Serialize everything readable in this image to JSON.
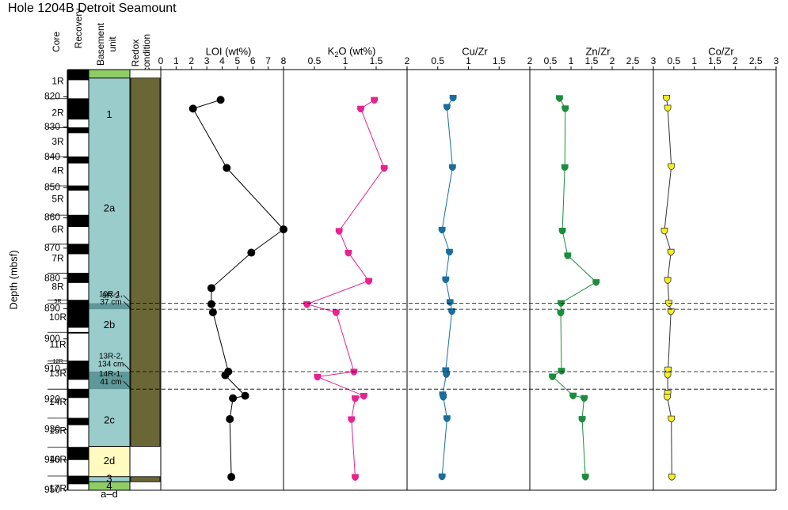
{
  "chart_data": {
    "type": "scatter",
    "title": "Hole 1204B Detroit Seamount",
    "ylabel": "Depth (mbsf)",
    "ylim": [
      950,
      811
    ],
    "yticks": [
      820,
      830,
      840,
      850,
      860,
      870,
      880,
      890,
      900,
      910,
      920,
      930,
      940,
      950
    ],
    "column_headers": {
      "core": "Core",
      "recovery": "Recovery",
      "basement": "Basement unit",
      "redox": "Redox condition"
    },
    "cores": [
      {
        "label": "1R",
        "depth": 815
      },
      {
        "label": "2R",
        "depth": 825.5
      },
      {
        "label": "3R",
        "depth": 835
      },
      {
        "label": "4R",
        "depth": 844.5
      },
      {
        "label": "5R",
        "depth": 854
      },
      {
        "label": "6R",
        "depth": 864
      },
      {
        "label": "7R",
        "depth": 873.5
      },
      {
        "label": "8R",
        "depth": 883
      },
      {
        "label": "9R",
        "depth": 887.6
      },
      {
        "label": "10R",
        "depth": 893
      },
      {
        "label": "11R",
        "depth": 902
      },
      {
        "label": "12R",
        "depth": 907.5
      },
      {
        "label": "13R",
        "depth": 911.5
      },
      {
        "label": "14R",
        "depth": 921
      },
      {
        "label": "15R",
        "depth": 930.5
      },
      {
        "label": "16R",
        "depth": 940
      },
      {
        "label": "17R",
        "depth": 949.5
      }
    ],
    "core_boundaries": [
      820.6,
      830.2,
      839.8,
      849.4,
      859.1,
      868.7,
      878.3,
      887.2,
      888.3,
      897.8,
      907.3,
      908.1,
      916.6,
      926.2,
      935.8,
      945.3
    ],
    "recovery_black": [
      [
        811,
        814.5
      ],
      [
        820.6,
        827.5
      ],
      [
        830.2,
        832
      ],
      [
        839.8,
        842
      ],
      [
        849.4,
        851
      ],
      [
        859.1,
        863
      ],
      [
        868.7,
        872
      ],
      [
        878.3,
        881.5
      ],
      [
        887.2,
        888.3
      ],
      [
        888.3,
        896.3
      ],
      [
        897.8,
        898.2
      ],
      [
        907.3,
        908.1
      ],
      [
        908.1,
        913.5
      ],
      [
        916.6,
        919.5
      ],
      [
        926.2,
        928.5
      ],
      [
        935.8,
        940
      ],
      [
        945.3,
        948
      ]
    ],
    "basement_units": [
      {
        "label": "",
        "from": 811,
        "to": 813.8,
        "color": "#8fcc66"
      },
      {
        "label": "1",
        "from": 813.8,
        "to": 935.5,
        "color": "#9acccc"
      },
      {
        "label": "2d",
        "from": 935.5,
        "to": 945.5,
        "color": "#fffac0"
      },
      {
        "label": "3",
        "from": 945.5,
        "to": 947.2,
        "color": "#9acccc"
      },
      {
        "label": "4",
        "from": 947.2,
        "to": 950,
        "color": "#8fcc66"
      }
    ],
    "basement_labels": [
      {
        "text": "1",
        "depth": 826
      },
      {
        "text": "2a",
        "depth": 857
      },
      {
        "text": "2b",
        "depth": 895.5
      },
      {
        "text": "2c",
        "depth": 927
      },
      {
        "text": "2d",
        "depth": 940.5
      },
      {
        "text": "3",
        "depth": 946.3
      },
      {
        "text": "4",
        "depth": 948.9
      },
      {
        "text": "a–d",
        "depth": 951.5
      }
    ],
    "basement_dark": [
      [
        888.2,
        890.2
      ],
      [
        910.8,
        916.6
      ]
    ],
    "redox_bands": [
      {
        "from": 813.8,
        "to": 935.5,
        "color": "#6b6636"
      },
      {
        "from": 945.5,
        "to": 947.2,
        "color": "#6b6636"
      }
    ],
    "annotations": [
      {
        "lines": [
          "9R-2"
        ],
        "depth": 888.2
      },
      {
        "lines": [
          "10R-1,",
          "37 cm"
        ],
        "depth": 890.2
      },
      {
        "lines": [
          "13R-2,",
          "134 cm"
        ],
        "depth": 910.8
      },
      {
        "lines": [
          "14R-1,",
          "41 cm"
        ],
        "depth": 916.6
      }
    ],
    "panels": [
      {
        "title": "LOI (wt%)",
        "xlim": [
          0,
          8
        ],
        "xticks": [
          "0",
          "1",
          "2",
          "3",
          "4",
          "5",
          "6",
          "7",
          "8"
        ],
        "color": "#000000",
        "marker": "circle",
        "points": [
          [
            3.9,
            821
          ],
          [
            2.1,
            823.9
          ],
          [
            4.3,
            843.5
          ],
          [
            8.0,
            863.8
          ],
          [
            5.9,
            871.5
          ],
          [
            3.3,
            883.2
          ],
          [
            3.3,
            888.5
          ],
          [
            3.4,
            891.2
          ],
          [
            4.4,
            910.8
          ],
          [
            4.2,
            912
          ],
          [
            5.5,
            918.8
          ],
          [
            4.7,
            919.6
          ],
          [
            4.5,
            926.5
          ],
          [
            4.6,
            945.6
          ]
        ]
      },
      {
        "title": "K2O (wt%)",
        "title_main": "K",
        "title_sub": "2",
        "title_rest": "O (wt%)",
        "xlim": [
          0,
          2
        ],
        "xticks": [
          "0",
          "0.5",
          "1",
          "1.5",
          "2"
        ],
        "color": "#e6238f",
        "marker": "shield",
        "points": [
          [
            1.47,
            821
          ],
          [
            1.25,
            823.9
          ],
          [
            1.63,
            843.5
          ],
          [
            0.9,
            864.3
          ],
          [
            1.05,
            871.5
          ],
          [
            1.38,
            880.8
          ],
          [
            0.38,
            888.5
          ],
          [
            0.85,
            891.2
          ],
          [
            1.14,
            910.8
          ],
          [
            0.55,
            912.5
          ],
          [
            1.3,
            918.8
          ],
          [
            1.16,
            919.6
          ],
          [
            1.1,
            926.5
          ],
          [
            1.16,
            945.6
          ]
        ]
      },
      {
        "title": "Cu/Zr",
        "xlim": [
          0,
          2
        ],
        "xticks": [
          "0",
          "0.5",
          "1",
          "1.5",
          "2"
        ],
        "color": "#1a6d9c",
        "marker": "shield",
        "points": [
          [
            0.75,
            820.3
          ],
          [
            0.65,
            823.3
          ],
          [
            0.74,
            843.2
          ],
          [
            0.57,
            863.9
          ],
          [
            0.69,
            871.2
          ],
          [
            0.63,
            880.3
          ],
          [
            0.7,
            887.8
          ],
          [
            0.73,
            890.8
          ],
          [
            0.63,
            910.3
          ],
          [
            0.64,
            911.6
          ],
          [
            0.58,
            918.3
          ],
          [
            0.59,
            919.1
          ],
          [
            0.65,
            926.2
          ],
          [
            0.57,
            945.4
          ]
        ]
      },
      {
        "title": "Zn/Zr",
        "xlim": [
          0,
          3
        ],
        "xticks": [
          "0",
          "0.5",
          "1",
          "1.5",
          "2",
          "2.5",
          "3"
        ],
        "color": "#1c8c3d",
        "marker": "shield",
        "points": [
          [
            0.72,
            820.4
          ],
          [
            0.86,
            823.8
          ],
          [
            0.85,
            843.2
          ],
          [
            0.79,
            864.2
          ],
          [
            0.92,
            872.4
          ],
          [
            1.61,
            881.2
          ],
          [
            0.76,
            888.1
          ],
          [
            0.75,
            891.3
          ],
          [
            0.77,
            910.5
          ],
          [
            0.55,
            912.4
          ],
          [
            1.05,
            918.7
          ],
          [
            1.32,
            919.5
          ],
          [
            1.27,
            926.4
          ],
          [
            1.35,
            945.5
          ]
        ]
      },
      {
        "title": "Co/Zr",
        "xlim": [
          0,
          3
        ],
        "xticks": [
          "0",
          "0.5",
          "1",
          "1.5",
          "2",
          "2.5",
          "3"
        ],
        "color": "#333333",
        "fill": "#f7ee1f",
        "marker": "shield",
        "points": [
          [
            0.32,
            820.3
          ],
          [
            0.35,
            823.6
          ],
          [
            0.44,
            842.9
          ],
          [
            0.27,
            864.2
          ],
          [
            0.43,
            871.2
          ],
          [
            0.35,
            880.5
          ],
          [
            0.38,
            888.1
          ],
          [
            0.43,
            890.8
          ],
          [
            0.36,
            910.1
          ],
          [
            0.35,
            911.8
          ],
          [
            0.35,
            917.8
          ],
          [
            0.34,
            919.1
          ],
          [
            0.44,
            926.3
          ],
          [
            0.45,
            945.5
          ]
        ]
      }
    ],
    "dashed_depths": [
      888.2,
      890.2,
      910.8,
      916.6
    ],
    "axis_label_bottom": [
      "0",
      "1",
      "2",
      "3",
      "4",
      "5",
      "6",
      "7",
      "8"
    ]
  }
}
